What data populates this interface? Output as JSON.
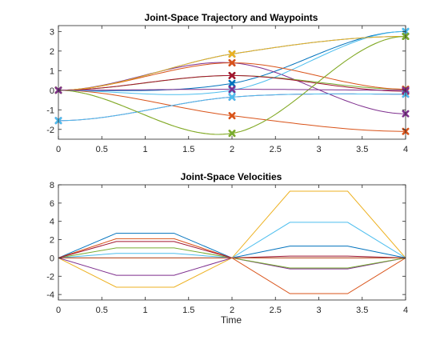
{
  "chart_data": [
    {
      "type": "line",
      "title": "Joint-Space Trajectory and Waypoints",
      "xlabel": "",
      "ylabel": "",
      "xlim": [
        0,
        4
      ],
      "ylim": [
        -2.5,
        3.3
      ],
      "xticks": [
        0,
        0.5,
        1,
        1.5,
        2,
        2.5,
        3,
        3.5,
        4
      ],
      "xtick_labels": [
        "0",
        "0.5",
        "1",
        "1.5",
        "2",
        "2.5",
        "3",
        "3.5",
        "4"
      ],
      "yticks": [
        -2,
        -1,
        0,
        1,
        2,
        3
      ],
      "ytick_labels": [
        "-2",
        "-1",
        "0",
        "1",
        "2",
        "3"
      ],
      "grid": false,
      "waypoint_times": [
        0,
        2,
        4
      ],
      "series": [
        {
          "color": "#0072BD",
          "waypoints": [
            0,
            0.35,
            3.0
          ],
          "values": [
            0,
            0.35,
            3.0
          ]
        },
        {
          "color": "#D95319",
          "waypoints": [
            0,
            -1.3,
            -2.1
          ],
          "values": [
            0,
            -1.3,
            -2.1
          ]
        },
        {
          "color": "#EDB120",
          "waypoints": [
            0,
            -2.2,
            2.75
          ],
          "values": [
            0,
            -2.2,
            2.75
          ]
        },
        {
          "color": "#7E2F8E",
          "waypoints": [
            0,
            1.4,
            -1.2
          ],
          "values": [
            0,
            1.4,
            -1.2
          ]
        },
        {
          "color": "#77AC30",
          "waypoints": [
            0,
            0.75,
            0.05
          ],
          "values": [
            0,
            0.75,
            0.05
          ]
        },
        {
          "color": "#4DBEEE",
          "waypoints": [
            0,
            0,
            3.0
          ],
          "values": [
            0,
            0,
            3.0
          ]
        },
        {
          "color": "#A2142F",
          "waypoints": [
            0,
            0.75,
            -0.05
          ],
          "values": [
            0,
            0.75,
            -0.05
          ]
        },
        {
          "color": "#0072BD",
          "waypoints": [
            0,
            1.85,
            2.75
          ],
          "values": [
            0,
            1.85,
            2.75
          ]
        },
        {
          "color": "#D95319",
          "waypoints": [
            0,
            1.4,
            0.05
          ],
          "values": [
            0,
            1.4,
            0.05
          ]
        },
        {
          "color": "#EDB120",
          "waypoints": [
            0,
            1.85,
            2.75
          ],
          "values": [
            0,
            1.85,
            2.75
          ]
        },
        {
          "color": "#7E2F8E",
          "waypoints": [
            -1.55,
            -0.35,
            -0.2
          ],
          "values": [
            -1.55,
            -0.35,
            -0.2
          ]
        },
        {
          "color": "#4DBEEE",
          "waypoints": [
            -1.55,
            -0.35,
            -0.2
          ],
          "values": [
            -1.55,
            -0.35,
            -0.2
          ]
        },
        {
          "color": "#77AC30",
          "waypoints": [
            0,
            -2.2,
            2.75
          ],
          "values": [
            0,
            -2.2,
            2.75
          ]
        },
        {
          "color": "#7E2F8E",
          "waypoints": [
            0,
            0.05,
            0
          ],
          "values": [
            0,
            0.05,
            0
          ]
        }
      ]
    },
    {
      "type": "line",
      "title": "Joint-Space Velocities",
      "xlabel": "Time",
      "ylabel": "",
      "xlim": [
        0,
        4
      ],
      "ylim": [
        -4.6,
        8
      ],
      "xticks": [
        0,
        0.5,
        1,
        1.5,
        2,
        2.5,
        3,
        3.5,
        4
      ],
      "xtick_labels": [
        "0",
        "0.5",
        "1",
        "1.5",
        "2",
        "2.5",
        "3",
        "3.5",
        "4"
      ],
      "yticks": [
        -4,
        -2,
        0,
        2,
        4,
        6,
        8
      ],
      "ytick_labels": [
        "-4",
        "-2",
        "0",
        "2",
        "4",
        "6",
        "8"
      ],
      "grid": false,
      "x": [
        0,
        0.667,
        1.333,
        2,
        2.667,
        3.333,
        4
      ],
      "series": [
        {
          "color": "#0072BD",
          "values": [
            0,
            2.7,
            2.7,
            0,
            1.3,
            1.3,
            0
          ]
        },
        {
          "color": "#D95319",
          "values": [
            0,
            2.1,
            2.1,
            0,
            -3.9,
            -3.9,
            0
          ]
        },
        {
          "color": "#EDB120",
          "values": [
            0,
            -3.2,
            -3.2,
            0,
            7.3,
            7.3,
            0
          ]
        },
        {
          "color": "#7E2F8E",
          "values": [
            0,
            -1.9,
            -1.9,
            0,
            -1.2,
            -1.2,
            0
          ]
        },
        {
          "color": "#77AC30",
          "values": [
            0,
            1.1,
            1.1,
            0,
            -1.1,
            -1.1,
            0
          ]
        },
        {
          "color": "#4DBEEE",
          "values": [
            0,
            0.5,
            0.5,
            0,
            3.9,
            3.9,
            0
          ]
        },
        {
          "color": "#A2142F",
          "values": [
            0,
            1.8,
            1.8,
            0,
            0.2,
            0.2,
            0
          ]
        },
        {
          "color": "#0072BD",
          "values": [
            0,
            0,
            0,
            0,
            0,
            0,
            0
          ]
        },
        {
          "color": "#D95319",
          "values": [
            0,
            0,
            0,
            0,
            0,
            0,
            0
          ]
        }
      ]
    }
  ]
}
